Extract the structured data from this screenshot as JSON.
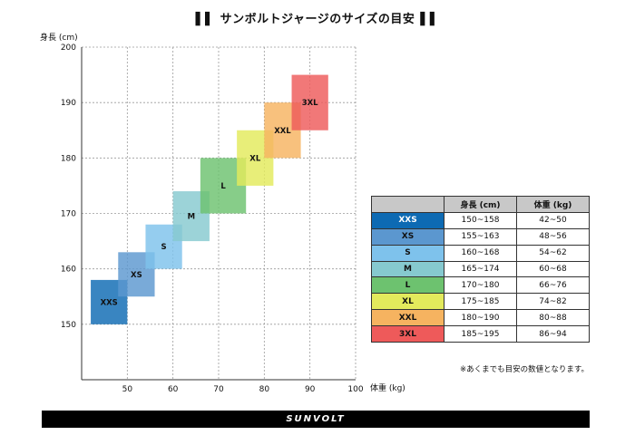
{
  "page": {
    "title": "サンボルトジャージのサイズの目安",
    "title_bar_glyph": "▌▌",
    "note": "※あくまでも目安の数値となります。",
    "brand": "SUNVOLT"
  },
  "chart_data": {
    "type": "scatter",
    "xlabel": "体重 (kg)",
    "ylabel": "身長 (cm)",
    "xlim": [
      40,
      100
    ],
    "ylim": [
      140,
      200
    ],
    "xticks": [
      50,
      60,
      70,
      80,
      90,
      100
    ],
    "yticks": [
      150,
      160,
      170,
      180,
      190,
      200
    ],
    "grid": "dashed",
    "series": [
      {
        "name": "XXS",
        "weight": [
          42,
          50
        ],
        "height": [
          150,
          158
        ],
        "color": "#0d6ab3"
      },
      {
        "name": "XS",
        "weight": [
          48,
          56
        ],
        "height": [
          155,
          163
        ],
        "color": "#5b97cf"
      },
      {
        "name": "S",
        "weight": [
          54,
          62
        ],
        "height": [
          160,
          168
        ],
        "color": "#7ec2ec"
      },
      {
        "name": "M",
        "weight": [
          60,
          68
        ],
        "height": [
          165,
          174
        ],
        "color": "#86c9cf"
      },
      {
        "name": "L",
        "weight": [
          66,
          76
        ],
        "height": [
          170,
          180
        ],
        "color": "#6dc26f"
      },
      {
        "name": "XL",
        "weight": [
          74,
          82
        ],
        "height": [
          175,
          185
        ],
        "color": "#e3ea5c"
      },
      {
        "name": "XXL",
        "weight": [
          80,
          88
        ],
        "height": [
          180,
          190
        ],
        "color": "#f6b360"
      },
      {
        "name": "3XL",
        "weight": [
          86,
          94
        ],
        "height": [
          185,
          195
        ],
        "color": "#ee5a5a"
      }
    ]
  },
  "table": {
    "headers": [
      "",
      "身長 (cm)",
      "体重 (kg)"
    ],
    "rows": [
      {
        "size": "XXS",
        "height": "150~158",
        "weight": "42~50",
        "color": "#0d6ab3",
        "text_color": "#ffffff"
      },
      {
        "size": "XS",
        "height": "155~163",
        "weight": "48~56",
        "color": "#5b97cf",
        "text_color": "#111111"
      },
      {
        "size": "S",
        "height": "160~168",
        "weight": "54~62",
        "color": "#7ec2ec",
        "text_color": "#111111"
      },
      {
        "size": "M",
        "height": "165~174",
        "weight": "60~68",
        "color": "#86c9cf",
        "text_color": "#111111"
      },
      {
        "size": "L",
        "height": "170~180",
        "weight": "66~76",
        "color": "#6dc26f",
        "text_color": "#111111"
      },
      {
        "size": "XL",
        "height": "175~185",
        "weight": "74~82",
        "color": "#e3ea5c",
        "text_color": "#111111"
      },
      {
        "size": "XXL",
        "height": "180~190",
        "weight": "80~88",
        "color": "#f6b360",
        "text_color": "#111111"
      },
      {
        "size": "3XL",
        "height": "185~195",
        "weight": "86~94",
        "color": "#ee5a5a",
        "text_color": "#111111"
      }
    ]
  }
}
